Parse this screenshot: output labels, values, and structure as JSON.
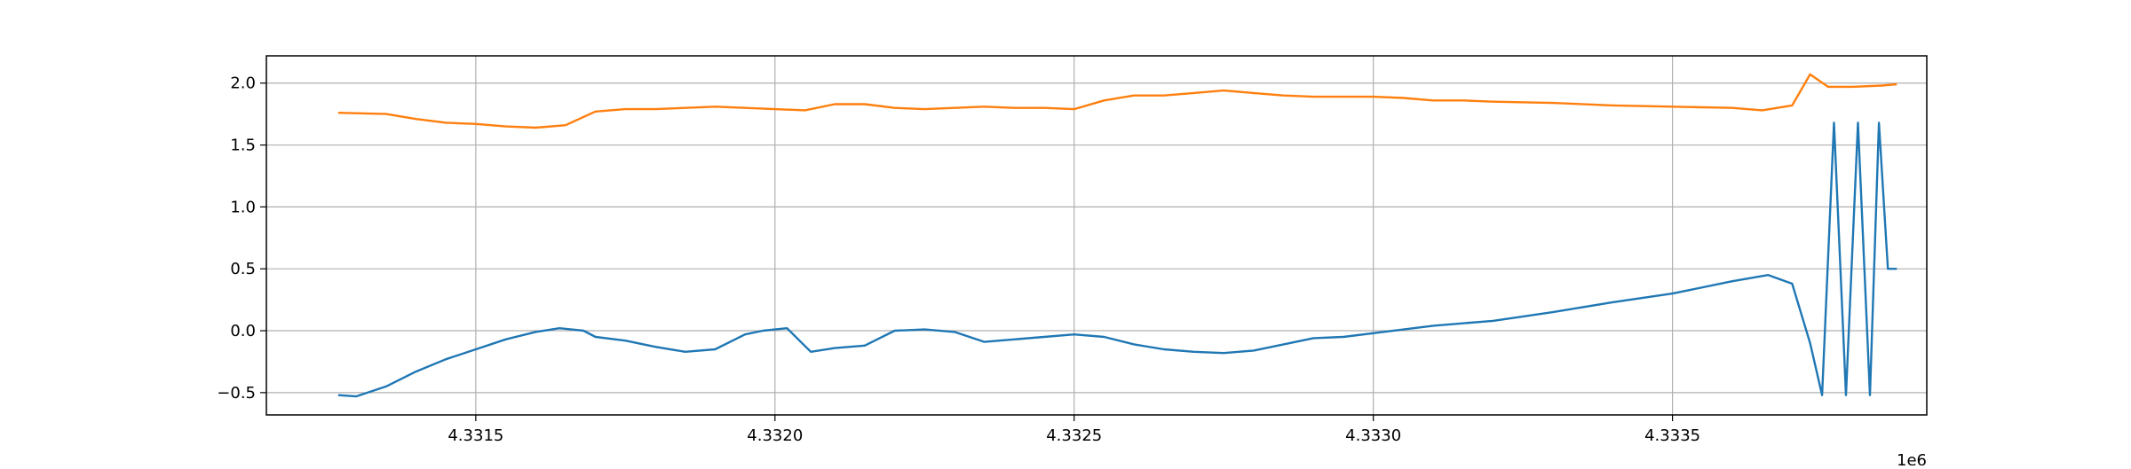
{
  "chart_data": {
    "type": "line",
    "title": "",
    "xlabel": "",
    "ylabel": "",
    "x_offset_label": "1e6",
    "xlim": [
      4331150,
      4333925
    ],
    "ylim": [
      -0.68,
      2.22
    ],
    "x_ticks": [
      4331500,
      4332000,
      4332500,
      4333000,
      4333500
    ],
    "x_tick_labels": [
      "4.3315",
      "4.3320",
      "4.3325",
      "4.3330",
      "4.3335"
    ],
    "y_ticks": [
      -0.5,
      0.0,
      0.5,
      1.0,
      1.5,
      2.0
    ],
    "y_tick_labels": [
      "−0.5",
      "0.0",
      "0.5",
      "1.0",
      "1.5",
      "2.0"
    ],
    "grid": true,
    "legend": "none",
    "series": [
      {
        "color": "#1f77b4",
        "x": [
          4331270,
          4331300,
          4331350,
          4331400,
          4331450,
          4331500,
          4331550,
          4331600,
          4331640,
          4331680,
          4331700,
          4331750,
          4331800,
          4331850,
          4331900,
          4331950,
          4331980,
          4332020,
          4332060,
          4332100,
          4332150,
          4332200,
          4332250,
          4332300,
          4332350,
          4332400,
          4332450,
          4332500,
          4332550,
          4332600,
          4332650,
          4332700,
          4332750,
          4332800,
          4332850,
          4332900,
          4332950,
          4333000,
          4333100,
          4333200,
          4333300,
          4333400,
          4333500,
          4333600,
          4333660,
          4333700,
          4333730,
          4333750,
          4333770,
          4333790,
          4333810,
          4333830,
          4333845,
          4333860,
          4333875
        ],
        "y": [
          -0.52,
          -0.53,
          -0.45,
          -0.33,
          -0.23,
          -0.15,
          -0.07,
          -0.01,
          0.02,
          0.0,
          -0.05,
          -0.08,
          -0.13,
          -0.17,
          -0.15,
          -0.03,
          0.0,
          0.02,
          -0.17,
          -0.14,
          -0.12,
          0.0,
          0.01,
          -0.01,
          -0.09,
          -0.07,
          -0.05,
          -0.03,
          -0.05,
          -0.11,
          -0.15,
          -0.17,
          -0.18,
          -0.16,
          -0.11,
          -0.06,
          -0.05,
          -0.02,
          0.04,
          0.08,
          0.15,
          0.23,
          0.3,
          0.4,
          0.45,
          0.38,
          -0.1,
          -0.52,
          1.68,
          -0.52,
          1.68,
          -0.52,
          1.68,
          0.5,
          0.5
        ]
      },
      {
        "color": "#ff7f0e",
        "x": [
          4331270,
          4331350,
          4331400,
          4331450,
          4331500,
          4331550,
          4331600,
          4331650,
          4331700,
          4331750,
          4331800,
          4331850,
          4331900,
          4331950,
          4332000,
          4332050,
          4332100,
          4332150,
          4332200,
          4332250,
          4332300,
          4332350,
          4332400,
          4332450,
          4332500,
          4332550,
          4332600,
          4332650,
          4332700,
          4332750,
          4332800,
          4332850,
          4332900,
          4332950,
          4333000,
          4333050,
          4333100,
          4333150,
          4333200,
          4333300,
          4333400,
          4333500,
          4333600,
          4333650,
          4333700,
          4333730,
          4333760,
          4333800,
          4333850,
          4333875
        ],
        "y": [
          1.76,
          1.75,
          1.71,
          1.68,
          1.67,
          1.65,
          1.64,
          1.66,
          1.77,
          1.79,
          1.79,
          1.8,
          1.81,
          1.8,
          1.79,
          1.78,
          1.83,
          1.83,
          1.8,
          1.79,
          1.8,
          1.81,
          1.8,
          1.8,
          1.79,
          1.86,
          1.9,
          1.9,
          1.92,
          1.94,
          1.92,
          1.9,
          1.89,
          1.89,
          1.89,
          1.88,
          1.86,
          1.86,
          1.85,
          1.84,
          1.82,
          1.81,
          1.8,
          1.78,
          1.82,
          2.07,
          1.97,
          1.97,
          1.98,
          1.99
        ]
      }
    ]
  }
}
